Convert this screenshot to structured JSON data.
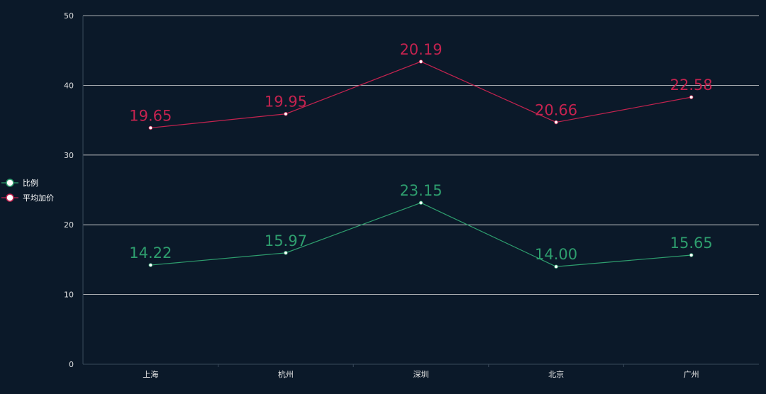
{
  "chart_data": {
    "type": "line",
    "categories": [
      "上海",
      "杭州",
      "深圳",
      "北京",
      "广州"
    ],
    "ylim": [
      0,
      50
    ],
    "yticks": [
      0,
      10,
      20,
      30,
      40,
      50
    ],
    "grid": true,
    "legend_position": "left",
    "series": [
      {
        "name": "比例",
        "color": "#2e9e6e",
        "values": [
          14.22,
          15.97,
          23.15,
          14.0,
          15.65
        ],
        "labels": [
          "14.22",
          "15.97",
          "23.15",
          "14.00",
          "15.65"
        ]
      },
      {
        "name": "平均加价",
        "color": "#c4234f",
        "values": [
          33.9,
          35.9,
          43.4,
          34.7,
          38.3
        ],
        "labels": [
          "19.65",
          "19.95",
          "20.19",
          "20.66",
          "22.58"
        ]
      }
    ]
  }
}
